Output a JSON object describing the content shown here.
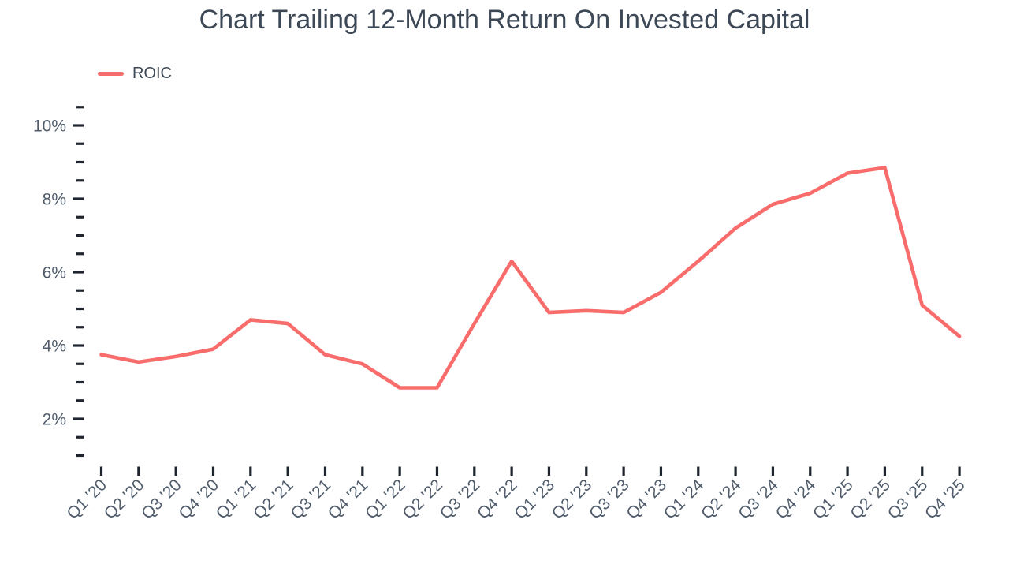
{
  "colors": {
    "line": "#f86d6b",
    "title_text": "#3d4856",
    "axis_text": "#505c6b",
    "tick_mark": "#1f252e"
  },
  "chart_data": {
    "type": "line",
    "title": "Chart Trailing 12-Month Return On Invested Capital",
    "xlabel": "",
    "ylabel": "",
    "grid": false,
    "legend_position": "top-left",
    "x": [
      "Q1 '20",
      "Q2 '20",
      "Q3 '20",
      "Q4 '20",
      "Q1 '21",
      "Q2 '21",
      "Q3 '21",
      "Q4 '21",
      "Q1 '22",
      "Q2 '22",
      "Q3 '22",
      "Q4 '22",
      "Q1 '23",
      "Q2 '23",
      "Q3 '23",
      "Q4 '23",
      "Q1 '24",
      "Q2 '24",
      "Q3 '24",
      "Q4 '24",
      "Q1 '25",
      "Q2 '25",
      "Q3 '25",
      "Q4 '25"
    ],
    "series": [
      {
        "name": "ROIC",
        "color": "#f86d6b",
        "values": [
          3.75,
          3.55,
          3.7,
          3.9,
          4.7,
          4.6,
          3.75,
          3.5,
          2.85,
          2.85,
          4.6,
          6.3,
          4.9,
          4.95,
          4.9,
          5.45,
          6.3,
          7.2,
          7.85,
          8.15,
          8.7,
          8.85,
          5.1,
          4.25
        ]
      }
    ],
    "y_axis": {
      "unit": "%",
      "min": 1,
      "max": 10.5,
      "minor_step": 0.5,
      "major_ticks": [
        2,
        4,
        6,
        8,
        10
      ],
      "major_labels": [
        "2%",
        "4%",
        "6%",
        "8%",
        "10%"
      ]
    }
  }
}
